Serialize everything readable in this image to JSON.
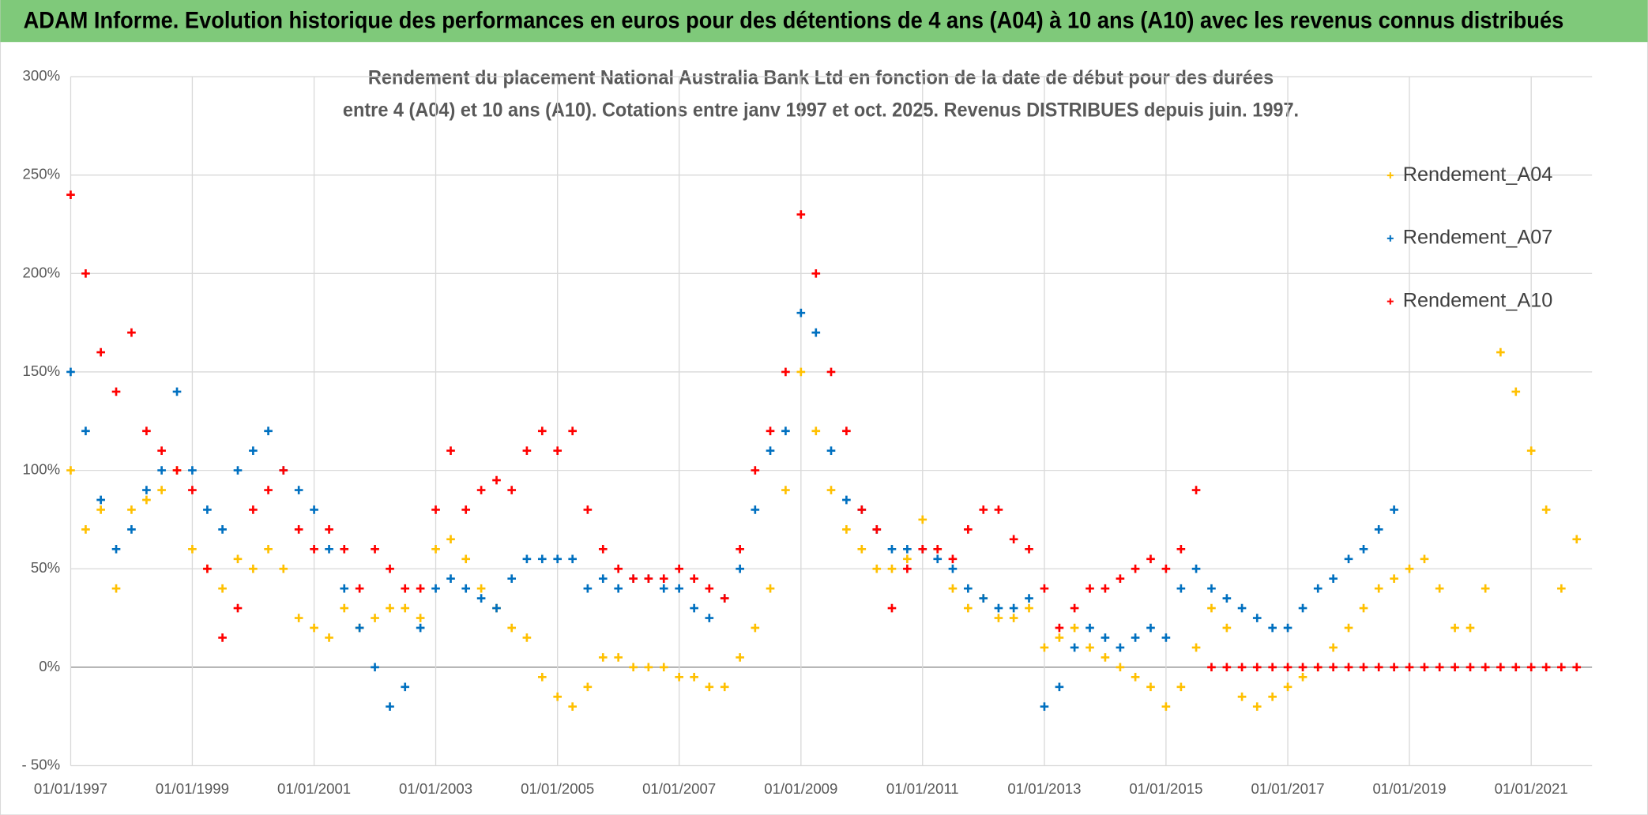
{
  "header": {
    "title": "ADAM Informe. Evolution historique des performances en euros pour des détentions de 4 ans (A04) à 10 ans (A10) avec les revenus connus distribués"
  },
  "chart_data": {
    "type": "scatter",
    "title_lines": [
      "Rendement du placement National Australia Bank Ltd en fonction de la date de début pour des durées",
      "entre 4 (A04) et 10 ans (A10). Cotations entre janv 1997 et oct. 2025. Revenus DISTRIBUES depuis juin. 1997."
    ],
    "x": [
      "1997-01-01",
      "1997-04-01",
      "1997-07-01",
      "1997-10-01",
      "1998-01-01",
      "1998-04-01",
      "1998-07-01",
      "1998-10-01",
      "1999-01-01",
      "1999-04-01",
      "1999-07-01",
      "1999-10-01",
      "2000-01-01",
      "2000-04-01",
      "2000-07-01",
      "2000-10-01",
      "2001-01-01",
      "2001-04-01",
      "2001-07-01",
      "2001-10-01",
      "2002-01-01",
      "2002-04-01",
      "2002-07-01",
      "2002-10-01",
      "2003-01-01",
      "2003-04-01",
      "2003-07-01",
      "2003-10-01",
      "2004-01-01",
      "2004-04-01",
      "2004-07-01",
      "2004-10-01",
      "2005-01-01",
      "2005-04-01",
      "2005-07-01",
      "2005-10-01",
      "2006-01-01",
      "2006-04-01",
      "2006-07-01",
      "2006-10-01",
      "2007-01-01",
      "2007-04-01",
      "2007-07-01",
      "2007-10-01",
      "2008-01-01",
      "2008-04-01",
      "2008-07-01",
      "2008-10-01",
      "2009-01-01",
      "2009-04-01",
      "2009-07-01",
      "2009-10-01",
      "2010-01-01",
      "2010-04-01",
      "2010-07-01",
      "2010-10-01",
      "2011-01-01",
      "2011-04-01",
      "2011-07-01",
      "2011-10-01",
      "2012-01-01",
      "2012-04-01",
      "2012-07-01",
      "2012-10-01",
      "2013-01-01",
      "2013-04-01",
      "2013-07-01",
      "2013-10-01",
      "2014-01-01",
      "2014-04-01",
      "2014-07-01",
      "2014-10-01",
      "2015-01-01",
      "2015-04-01",
      "2015-07-01",
      "2015-10-01",
      "2016-01-01",
      "2016-04-01",
      "2016-07-01",
      "2016-10-01",
      "2017-01-01",
      "2017-04-01",
      "2017-07-01",
      "2017-10-01",
      "2018-01-01",
      "2018-04-01",
      "2018-07-01",
      "2018-10-01",
      "2019-01-01",
      "2019-04-01",
      "2019-07-01",
      "2019-10-01",
      "2020-01-01",
      "2020-04-01",
      "2020-07-01",
      "2020-10-01",
      "2021-01-01",
      "2021-04-01",
      "2021-07-01",
      "2021-10-01"
    ],
    "series": [
      {
        "name": "Rendement_A04",
        "color": "#ffc000",
        "values": [
          100,
          70,
          80,
          40,
          80,
          85,
          90,
          100,
          60,
          50,
          40,
          55,
          50,
          60,
          50,
          25,
          20,
          15,
          30,
          20,
          25,
          30,
          30,
          25,
          60,
          65,
          55,
          40,
          30,
          20,
          15,
          -5,
          -15,
          -20,
          -10,
          5,
          5,
          0,
          0,
          0,
          -5,
          -5,
          -10,
          -10,
          5,
          20,
          40,
          90,
          150,
          120,
          90,
          70,
          60,
          50,
          50,
          55,
          75,
          60,
          40,
          30,
          35,
          25,
          25,
          30,
          10,
          15,
          20,
          10,
          5,
          0,
          -5,
          -10,
          -20,
          -10,
          10,
          30,
          20,
          -15,
          -20,
          -15,
          -10,
          -5,
          0,
          10,
          20,
          30,
          40,
          45,
          50,
          55,
          40,
          20,
          20,
          40,
          160,
          140,
          110,
          80,
          40,
          65
        ]
      },
      {
        "name": "Rendement_A07",
        "color": "#0070c0",
        "values": [
          150,
          120,
          85,
          60,
          70,
          90,
          100,
          140,
          100,
          80,
          70,
          100,
          110,
          120,
          100,
          90,
          80,
          60,
          40,
          20,
          0,
          -20,
          -10,
          20,
          40,
          45,
          40,
          35,
          30,
          45,
          55,
          55,
          55,
          55,
          40,
          45,
          40,
          45,
          45,
          40,
          40,
          30,
          25,
          35,
          50,
          80,
          110,
          120,
          180,
          170,
          110,
          85,
          80,
          70,
          60,
          60,
          60,
          55,
          50,
          40,
          35,
          30,
          30,
          35,
          -20,
          -10,
          10,
          20,
          15,
          10,
          15,
          20,
          15,
          40,
          50,
          40,
          35,
          30,
          25,
          20,
          20,
          30,
          40,
          45,
          55,
          60,
          70,
          80,
          null,
          null,
          null,
          null,
          null,
          null,
          null,
          null,
          null,
          null,
          null,
          null
        ]
      },
      {
        "name": "Rendement_A10",
        "color": "#ff0000",
        "values": [
          240,
          200,
          160,
          140,
          170,
          120,
          110,
          100,
          90,
          50,
          15,
          30,
          80,
          90,
          100,
          70,
          60,
          70,
          60,
          40,
          60,
          50,
          40,
          40,
          80,
          110,
          80,
          90,
          95,
          90,
          110,
          120,
          110,
          120,
          80,
          60,
          50,
          45,
          45,
          45,
          50,
          45,
          40,
          35,
          60,
          100,
          120,
          150,
          230,
          200,
          150,
          120,
          80,
          70,
          30,
          50,
          60,
          60,
          55,
          70,
          80,
          80,
          65,
          60,
          40,
          20,
          30,
          40,
          40,
          45,
          50,
          55,
          50,
          60,
          90,
          0,
          0,
          0,
          0,
          0,
          0,
          0,
          0,
          0,
          0,
          0,
          0,
          0,
          0,
          0,
          0,
          0,
          0,
          0,
          0,
          0,
          0,
          0,
          0,
          0
        ]
      }
    ],
    "xlim": [
      "1997-01-01",
      "2022-01-01"
    ],
    "xticks": [
      {
        "value": "1997-01-01",
        "label": "01/01/1997"
      },
      {
        "value": "1999-01-01",
        "label": "01/01/1999"
      },
      {
        "value": "2001-01-01",
        "label": "01/01/2001"
      },
      {
        "value": "2003-01-01",
        "label": "01/01/2003"
      },
      {
        "value": "2005-01-01",
        "label": "01/01/2005"
      },
      {
        "value": "2007-01-01",
        "label": "01/01/2007"
      },
      {
        "value": "2009-01-01",
        "label": "01/01/2009"
      },
      {
        "value": "2011-01-01",
        "label": "01/01/2011"
      },
      {
        "value": "2013-01-01",
        "label": "01/01/2013"
      },
      {
        "value": "2015-01-01",
        "label": "01/01/2015"
      },
      {
        "value": "2017-01-01",
        "label": "01/01/2017"
      },
      {
        "value": "2019-01-01",
        "label": "01/01/2019"
      },
      {
        "value": "2021-01-01",
        "label": "01/01/2021"
      }
    ],
    "ylim": [
      -50,
      300
    ],
    "yticks": [
      {
        "value": -50,
        "label": "- 50%"
      },
      {
        "value": 0,
        "label": "0%"
      },
      {
        "value": 50,
        "label": "50%"
      },
      {
        "value": 100,
        "label": "100%"
      },
      {
        "value": 150,
        "label": "150%"
      },
      {
        "value": 200,
        "label": "200%"
      },
      {
        "value": 250,
        "label": "250%"
      },
      {
        "value": 300,
        "label": "300%"
      }
    ],
    "grid": true,
    "legend": "right"
  }
}
